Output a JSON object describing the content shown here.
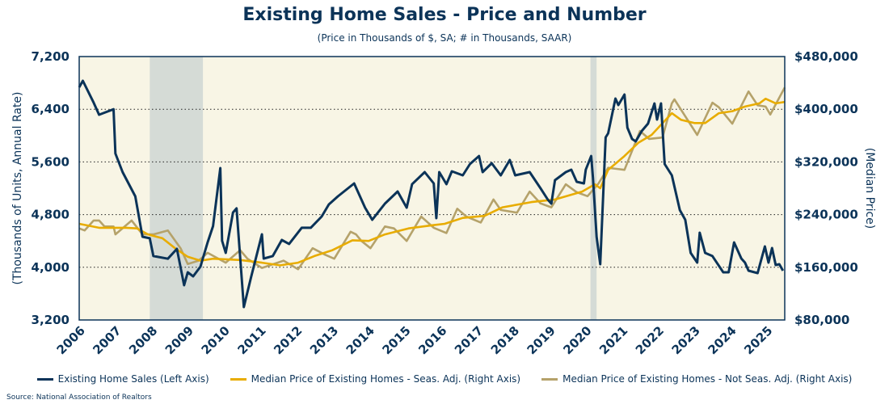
{
  "chart_data": {
    "type": "line",
    "title": "Existing Home Sales - Price and Number",
    "subtitle": "(Price in Thousands of $, SA; # in Thousands, SAAR)",
    "ylabel_left": "(Thousands of Units, Annual Rate)",
    "ylabel_right": "(Median Price)",
    "ylim_left": [
      3200,
      7200
    ],
    "ylim_right": [
      80000,
      480000
    ],
    "yticks_left": [
      "3,200",
      "4,000",
      "4,800",
      "5,600",
      "6,400",
      "7,200"
    ],
    "yticks_right": [
      "$80,000",
      "$160,000",
      "$240,000",
      "$320,000",
      "$400,000",
      "$480,000"
    ],
    "xlim": [
      2006,
      2025.5
    ],
    "xticks": [
      "2006",
      "2007",
      "2008",
      "2009",
      "2010",
      "2011",
      "2012",
      "2013",
      "2014",
      "2015",
      "2016",
      "2017",
      "2018",
      "2019",
      "2020",
      "2021",
      "2022",
      "2023",
      "2024",
      "2025"
    ],
    "grid": "horizontal dotted",
    "recessions": [
      [
        2007.95,
        2009.42
      ],
      [
        2020.13,
        2020.3
      ]
    ],
    "legend_position": "bottom",
    "source": "Source: National Association of Realtors",
    "colors": {
      "sales": "#0b3358",
      "sa": "#e8ac00",
      "nsa": "#b5a26a",
      "recession": "#d5dbd6",
      "plot_bg": "#f8f5e5"
    },
    "series": [
      {
        "name": "Existing Home Sales (Left Axis)",
        "axis": "left",
        "x": [
          2006.0,
          2006.1,
          2006.4,
          2006.55,
          2006.95,
          2007.0,
          2007.2,
          2007.55,
          2007.75,
          2007.95,
          2008.05,
          2008.45,
          2008.7,
          2008.9,
          2009.0,
          2009.15,
          2009.35,
          2009.55,
          2009.7,
          2009.9,
          2009.95,
          2010.05,
          2010.25,
          2010.35,
          2010.55,
          2010.75,
          2011.05,
          2011.1,
          2011.35,
          2011.6,
          2011.8,
          2012.15,
          2012.4,
          2012.7,
          2012.9,
          2013.15,
          2013.6,
          2013.9,
          2014.1,
          2014.45,
          2014.8,
          2015.05,
          2015.2,
          2015.55,
          2015.8,
          2015.87,
          2015.95,
          2016.15,
          2016.3,
          2016.6,
          2016.8,
          2017.05,
          2017.15,
          2017.4,
          2017.65,
          2017.9,
          2018.05,
          2018.45,
          2018.75,
          2018.95,
          2019.05,
          2019.15,
          2019.45,
          2019.6,
          2019.75,
          2019.95,
          2020.0,
          2020.15,
          2020.2,
          2020.3,
          2020.4,
          2020.55,
          2020.62,
          2020.82,
          2020.9,
          2021.07,
          2021.15,
          2021.28,
          2021.38,
          2021.55,
          2021.72,
          2021.9,
          2021.97,
          2022.08,
          2022.18,
          2022.38,
          2022.6,
          2022.75,
          2022.9,
          2023.08,
          2023.15,
          2023.3,
          2023.5,
          2023.8,
          2023.95,
          2024.1,
          2024.3,
          2024.4,
          2024.5,
          2024.75,
          2024.95,
          2025.05,
          2025.15,
          2025.25,
          2025.35,
          2025.45
        ],
        "values": [
          6734,
          6832,
          6500,
          6316,
          6400,
          5728,
          5445,
          5077,
          4464,
          4440,
          4170,
          4130,
          4280,
          3728,
          3924,
          3863,
          4010,
          4378,
          4624,
          5507,
          4403,
          4218,
          4832,
          4894,
          3396,
          3851,
          4501,
          4133,
          4170,
          4415,
          4354,
          4600,
          4600,
          4771,
          4955,
          5077,
          5274,
          4906,
          4722,
          4967,
          5151,
          4906,
          5262,
          5445,
          5274,
          4746,
          5445,
          5262,
          5458,
          5396,
          5568,
          5690,
          5445,
          5580,
          5396,
          5629,
          5396,
          5445,
          5200,
          5028,
          4967,
          5323,
          5445,
          5482,
          5298,
          5274,
          5482,
          5690,
          5360,
          4464,
          4047,
          5973,
          6034,
          6562,
          6464,
          6623,
          6120,
          5949,
          5912,
          6071,
          6182,
          6488,
          6243,
          6488,
          5568,
          5396,
          4869,
          4722,
          4218,
          4071,
          4525,
          4218,
          4170,
          3924,
          3924,
          4378,
          4133,
          4071,
          3949,
          3912,
          4317,
          4071,
          4292,
          4034,
          4047,
          3949
        ]
      },
      {
        "name": "Median Price of Existing Homes - Seas. Adj. (Right Axis)",
        "axis": "right",
        "x": [
          2006.0,
          2006.55,
          2007.3,
          2007.6,
          2007.9,
          2008.3,
          2008.65,
          2009.0,
          2009.35,
          2009.7,
          2010.45,
          2011.05,
          2011.55,
          2012.05,
          2012.5,
          2013.0,
          2013.55,
          2014.0,
          2014.45,
          2015.1,
          2015.8,
          2016.1,
          2016.6,
          2017.2,
          2017.7,
          2018.5,
          2019.15,
          2019.9,
          2020.25,
          2020.4,
          2020.62,
          2021.07,
          2021.45,
          2021.82,
          2022.38,
          2022.63,
          2023.0,
          2023.3,
          2023.68,
          2024.05,
          2024.4,
          2024.8,
          2024.97,
          2025.25,
          2025.5
        ],
        "values": [
          226000,
          220000,
          220000,
          219000,
          210000,
          204000,
          189000,
          176000,
          170000,
          173000,
          171000,
          167000,
          163000,
          167000,
          177000,
          186000,
          201000,
          200000,
          210000,
          219000,
          224000,
          226000,
          235000,
          238000,
          251000,
          259000,
          263000,
          275000,
          286000,
          280000,
          308000,
          329000,
          349000,
          361000,
          394000,
          384000,
          379000,
          379000,
          394000,
          397000,
          404000,
          409000,
          416000,
          409000,
          411000
        ]
      },
      {
        "name": "Median Price of Existing Homes - Not Seas. Adj. (Right Axis)",
        "axis": "right",
        "x": [
          2006.0,
          2006.15,
          2006.4,
          2006.55,
          2006.7,
          2006.95,
          2007.0,
          2007.45,
          2007.75,
          2008.05,
          2008.45,
          2008.8,
          2009.0,
          2009.3,
          2009.55,
          2010.05,
          2010.45,
          2010.65,
          2011.05,
          2011.65,
          2012.05,
          2012.45,
          2012.8,
          2013.05,
          2013.5,
          2013.65,
          2013.8,
          2014.05,
          2014.45,
          2014.7,
          2015.05,
          2015.45,
          2015.8,
          2016.15,
          2016.45,
          2016.7,
          2017.1,
          2017.45,
          2017.65,
          2018.1,
          2018.45,
          2018.75,
          2019.05,
          2019.45,
          2019.75,
          2020.05,
          2020.35,
          2020.62,
          2021.07,
          2021.5,
          2021.75,
          2022.12,
          2022.38,
          2022.45,
          2023.08,
          2023.5,
          2023.68,
          2024.05,
          2024.5,
          2024.75,
          2024.97,
          2025.1,
          2025.5
        ],
        "values": [
          219000,
          216000,
          231000,
          231000,
          222000,
          222000,
          210000,
          231000,
          210000,
          210000,
          216000,
          189000,
          165000,
          170000,
          182000,
          167000,
          186000,
          173000,
          159000,
          170000,
          157000,
          189000,
          179000,
          173000,
          214000,
          210000,
          200000,
          189000,
          222000,
          219000,
          200000,
          237000,
          220000,
          212000,
          249000,
          237000,
          228000,
          263000,
          247000,
          243000,
          275000,
          257000,
          251000,
          286000,
          274000,
          268000,
          287000,
          311000,
          308000,
          367000,
          355000,
          357000,
          409000,
          415000,
          361000,
          410000,
          403000,
          378000,
          427000,
          406000,
          404000,
          392000,
          433000
        ]
      }
    ]
  }
}
